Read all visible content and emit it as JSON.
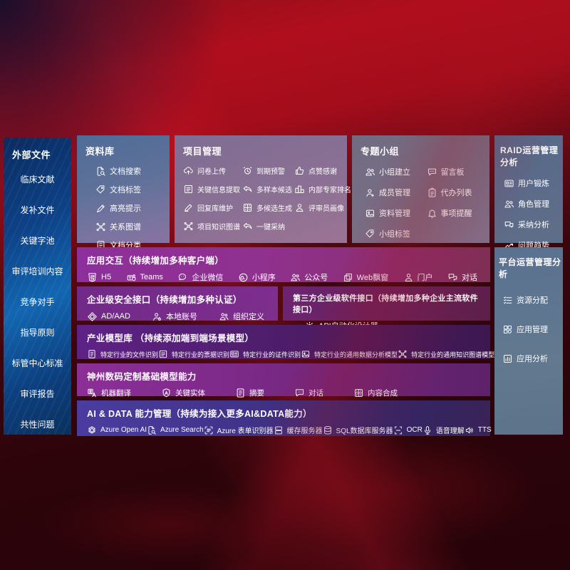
{
  "palette": {
    "bg_red": "#b00e1d",
    "bg_dark": "#2a040b",
    "sidebar_blue": "#1266b2",
    "panel_slate": "#5f6e88",
    "row_magenta": "#8d2f9c",
    "row_purple": "#712a88",
    "row_violet": "#5e2287",
    "row_indigo": "#4b3da0",
    "text": "#ffffff"
  },
  "left_sidebar": {
    "title": "外部文件",
    "items": [
      "临床文献",
      "发补文件",
      "关键字池",
      "审评培训内容",
      "竞争对手",
      "指导原则",
      "标管中心标准",
      "审评报告",
      "共性问题"
    ]
  },
  "repository_panel": {
    "title": "资料库",
    "items": [
      {
        "icon": "doc-search",
        "label": "文档搜索"
      },
      {
        "icon": "tag",
        "label": "文档标签"
      },
      {
        "icon": "highlight-pen",
        "label": "高亮提示"
      },
      {
        "icon": "graph",
        "label": "关系图谱"
      },
      {
        "icon": "doc-lines",
        "label": "文档分类"
      }
    ]
  },
  "project_panel": {
    "title": "项目管理",
    "items": [
      {
        "icon": "cloud-upload",
        "label": "问卷上传"
      },
      {
        "icon": "alarm",
        "label": "到期预警"
      },
      {
        "icon": "thumbs-up",
        "label": "点赞感谢"
      },
      {
        "icon": "doc-extract",
        "label": "关键信息提取"
      },
      {
        "icon": "reply",
        "label": "多样本候选"
      },
      {
        "icon": "podium",
        "label": "内部专家排名"
      },
      {
        "icon": "pen",
        "label": "回复库维护"
      },
      {
        "icon": "split-grid",
        "label": "多候选生成"
      },
      {
        "icon": "person",
        "label": "评审员画像"
      },
      {
        "icon": "graph",
        "label": "项目知识图谱"
      },
      {
        "icon": "reply",
        "label": "一键采纳"
      }
    ]
  },
  "topic_panel": {
    "title": "专题小组",
    "items": [
      {
        "icon": "people",
        "label": "小组建立"
      },
      {
        "icon": "bbs-chat",
        "label": "留言板"
      },
      {
        "icon": "person-add",
        "label": "成员管理"
      },
      {
        "icon": "clipboard",
        "label": "代办列表"
      },
      {
        "icon": "image",
        "label": "资料管理"
      },
      {
        "icon": "bell",
        "label": "事项提醒"
      },
      {
        "icon": "tag",
        "label": "小组标签"
      }
    ]
  },
  "raid_panel": {
    "title": "RAID运营管理分析",
    "items": [
      {
        "icon": "id-card",
        "label": "用户锻炼"
      },
      {
        "icon": "people",
        "label": "角色管理"
      },
      {
        "icon": "chat-qa",
        "label": "采纳分析"
      },
      {
        "icon": "trend-chart",
        "label": "问题趋势"
      }
    ]
  },
  "platform_panel": {
    "title": "平台运营管理分析",
    "items": [
      {
        "icon": "checklist",
        "label": "资源分配"
      },
      {
        "icon": "app-grid",
        "label": "应用管理"
      },
      {
        "icon": "app-chart",
        "label": "应用分析"
      }
    ]
  },
  "interaction_row": {
    "title": "应用交互（持续增加多种客户端）",
    "items": [
      {
        "icon": "html5",
        "label": "H5"
      },
      {
        "icon": "teams",
        "label": "Teams"
      },
      {
        "icon": "wechat-work",
        "label": "企业微信"
      },
      {
        "icon": "mini-program",
        "label": "小程序"
      },
      {
        "icon": "people",
        "label": "公众号"
      },
      {
        "icon": "window-float",
        "label": "Web飘窗"
      },
      {
        "icon": "person",
        "label": "门户"
      },
      {
        "icon": "chat-pair",
        "label": "对话"
      }
    ]
  },
  "security_row": {
    "title": "企业级安全接口（持续增加多种认证）",
    "items": [
      {
        "icon": "shield-diamond",
        "label": "AD/AAD"
      },
      {
        "icon": "person-key",
        "label": "本地账号"
      },
      {
        "icon": "org-people",
        "label": "组织定义"
      }
    ]
  },
  "third_party_row": {
    "title": "第三方企业级软件接口（持续增加多种企业主流软件接口）",
    "items": [
      {
        "icon": "api-gear",
        "label": "API自动化设计器"
      }
    ]
  },
  "industry_row": {
    "title": "产业模型库 （持续添加端到端场景模型）",
    "items": [
      {
        "icon": "doc-lines",
        "label": "特定行业的文件识别"
      },
      {
        "icon": "doc-extract",
        "label": "特定行业的票据识别"
      },
      {
        "icon": "id-card",
        "label": "特定行业的证件识别"
      },
      {
        "icon": "image",
        "label": "特定行业的通用数据分析模型"
      },
      {
        "icon": "graph",
        "label": "特定行业的通用知识图谱模型"
      }
    ]
  },
  "base_model_row": {
    "title": "神州数码定制基础模型能力",
    "items": [
      {
        "icon": "translate",
        "label": "机器翻译"
      },
      {
        "icon": "badge-a",
        "label": "关键实体"
      },
      {
        "icon": "doc-lines",
        "label": "摘要"
      },
      {
        "icon": "chat-dots",
        "label": "对话"
      },
      {
        "icon": "split-grid",
        "label": "内容合成"
      }
    ]
  },
  "ai_data_row": {
    "title": "AI & DATA 能力管理（持续为接入更多AI&DATA能力）",
    "items": [
      {
        "icon": "openai",
        "label": "Azure Open AI"
      },
      {
        "icon": "doc-search",
        "label": "Azure Search"
      },
      {
        "icon": "form-scan",
        "label": "Azure 表单识别器"
      },
      {
        "icon": "server",
        "label": "缓存服务器"
      },
      {
        "icon": "database",
        "label": "SQL数据库服务器"
      },
      {
        "icon": "ocr-scan",
        "label": "OCR"
      },
      {
        "icon": "mic",
        "label": "语音理解"
      },
      {
        "icon": "speaker",
        "label": "TTS"
      }
    ]
  }
}
